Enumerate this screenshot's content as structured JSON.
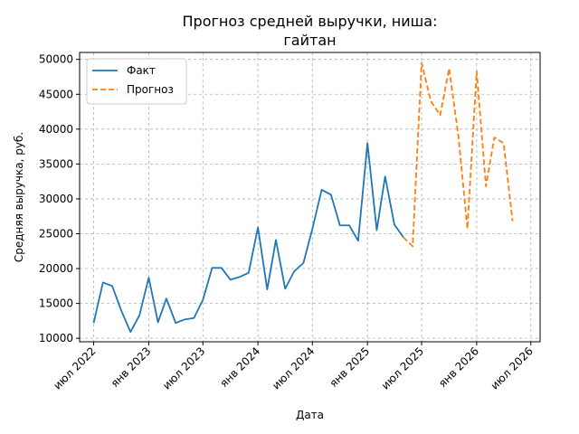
{
  "chart_data": {
    "type": "line",
    "title_lines": [
      "Прогноз средней выручки, ниша:",
      "гайтан"
    ],
    "xlabel": "Дата",
    "ylabel": "Средняя выручка, руб.",
    "ylim": [
      9500,
      51000
    ],
    "xlim": [
      "2022-05-15",
      "2026-08-01"
    ],
    "grid": true,
    "legend_position": "top-left",
    "x_ticks": [
      {
        "date": "2022-07-01",
        "label": "июл 2022"
      },
      {
        "date": "2023-01-01",
        "label": "янв 2023"
      },
      {
        "date": "2023-07-01",
        "label": "июл 2023"
      },
      {
        "date": "2024-01-01",
        "label": "янв 2024"
      },
      {
        "date": "2024-07-01",
        "label": "июл 2024"
      },
      {
        "date": "2025-01-01",
        "label": "янв 2025"
      },
      {
        "date": "2025-07-01",
        "label": "июл 2025"
      },
      {
        "date": "2026-01-01",
        "label": "янв 2026"
      },
      {
        "date": "2026-07-01",
        "label": "июл 2026"
      }
    ],
    "y_ticks": [
      10000,
      15000,
      20000,
      25000,
      30000,
      35000,
      40000,
      45000,
      50000
    ],
    "series": [
      {
        "name": "Факт",
        "color": "#1f77b4",
        "style": "solid",
        "points": [
          [
            "2022-07-01",
            12200
          ],
          [
            "2022-08-01",
            18000
          ],
          [
            "2022-09-01",
            17500
          ],
          [
            "2022-10-01",
            14000
          ],
          [
            "2022-11-01",
            10900
          ],
          [
            "2022-12-01",
            13300
          ],
          [
            "2023-01-01",
            18700
          ],
          [
            "2023-02-01",
            12300
          ],
          [
            "2023-03-01",
            15700
          ],
          [
            "2023-04-01",
            12200
          ],
          [
            "2023-05-01",
            12700
          ],
          [
            "2023-06-01",
            12900
          ],
          [
            "2023-07-01",
            15500
          ],
          [
            "2023-08-01",
            20100
          ],
          [
            "2023-09-01",
            20100
          ],
          [
            "2023-10-01",
            18400
          ],
          [
            "2023-11-01",
            18800
          ],
          [
            "2023-12-01",
            19400
          ],
          [
            "2024-01-01",
            25900
          ],
          [
            "2024-02-01",
            17000
          ],
          [
            "2024-03-01",
            24100
          ],
          [
            "2024-04-01",
            17100
          ],
          [
            "2024-05-01",
            19600
          ],
          [
            "2024-06-01",
            20800
          ],
          [
            "2024-07-01",
            25700
          ],
          [
            "2024-08-01",
            31300
          ],
          [
            "2024-09-01",
            30600
          ],
          [
            "2024-10-01",
            26200
          ],
          [
            "2024-11-01",
            26200
          ],
          [
            "2024-12-01",
            24000
          ],
          [
            "2025-01-01",
            38000
          ],
          [
            "2025-02-01",
            25500
          ],
          [
            "2025-03-01",
            33200
          ],
          [
            "2025-04-01",
            26300
          ],
          [
            "2025-05-01",
            24500
          ]
        ]
      },
      {
        "name": "Прогноз",
        "color": "#ff7f0e",
        "style": "dashed",
        "points": [
          [
            "2025-05-01",
            24500
          ],
          [
            "2025-06-01",
            23200
          ],
          [
            "2025-07-01",
            49500
          ],
          [
            "2025-08-01",
            44000
          ],
          [
            "2025-09-01",
            42000
          ],
          [
            "2025-10-01",
            48700
          ],
          [
            "2025-11-01",
            39000
          ],
          [
            "2025-12-01",
            25700
          ],
          [
            "2026-01-01",
            48300
          ],
          [
            "2026-02-01",
            31800
          ],
          [
            "2026-03-01",
            38800
          ],
          [
            "2026-04-01",
            38000
          ],
          [
            "2026-05-01",
            26800
          ]
        ]
      }
    ]
  }
}
